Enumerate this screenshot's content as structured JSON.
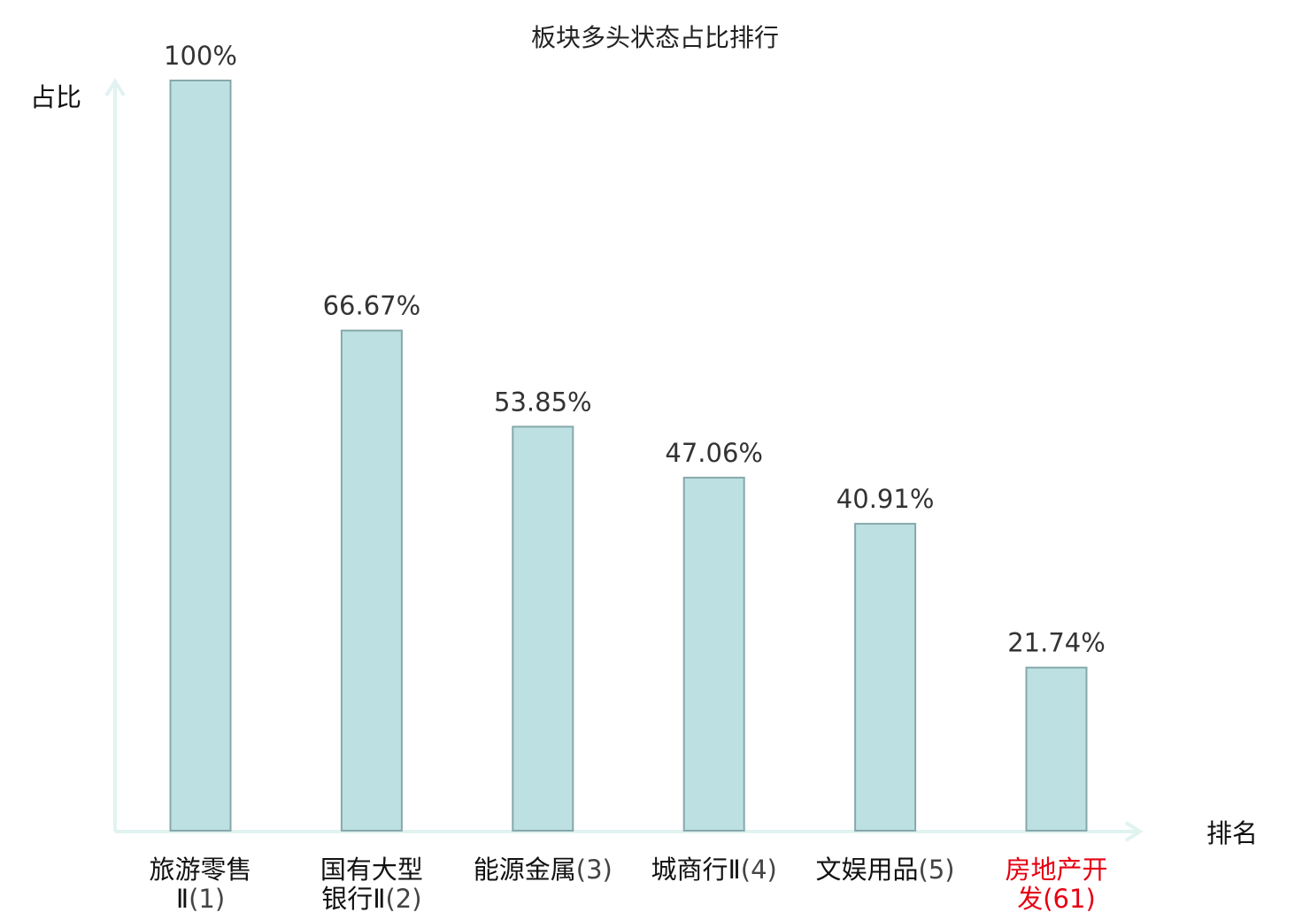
{
  "chart_data": {
    "type": "bar",
    "title": "板块多头状态占比排行",
    "ylabel": "占比",
    "xlabel": "排名",
    "ylim": [
      0,
      100
    ],
    "grid": false,
    "categories": [
      {
        "name": "旅游零售Ⅱ",
        "rank": "(1)",
        "lines": [
          "旅游零售",
          "Ⅱ(1)"
        ],
        "highlight": false
      },
      {
        "name": "国有大型银行Ⅱ",
        "rank": "(2)",
        "lines": [
          "国有大型",
          "银行Ⅱ(2)"
        ],
        "highlight": false
      },
      {
        "name": "能源金属",
        "rank": "(3)",
        "lines": [
          "能源金属(3)"
        ],
        "highlight": false
      },
      {
        "name": "城商行Ⅱ",
        "rank": "(4)",
        "lines": [
          "城商行Ⅱ(4)"
        ],
        "highlight": false
      },
      {
        "name": "文娱用品",
        "rank": "(5)",
        "lines": [
          "文娱用品(5)"
        ],
        "highlight": false
      },
      {
        "name": "房地产开发",
        "rank": "(61)",
        "lines": [
          "房地产开",
          "发(61)"
        ],
        "highlight": true
      }
    ],
    "values": [
      100,
      66.67,
      53.85,
      47.06,
      40.91,
      21.74
    ],
    "value_labels": [
      "100%",
      "66.67%",
      "53.85%",
      "47.06%",
      "40.91%",
      "21.74%"
    ],
    "colors": {
      "bar_fill": "#bde0e3",
      "bar_stroke": "#86a8ab",
      "axis": "#e0f3f0",
      "highlight_text": "#e60012"
    }
  }
}
